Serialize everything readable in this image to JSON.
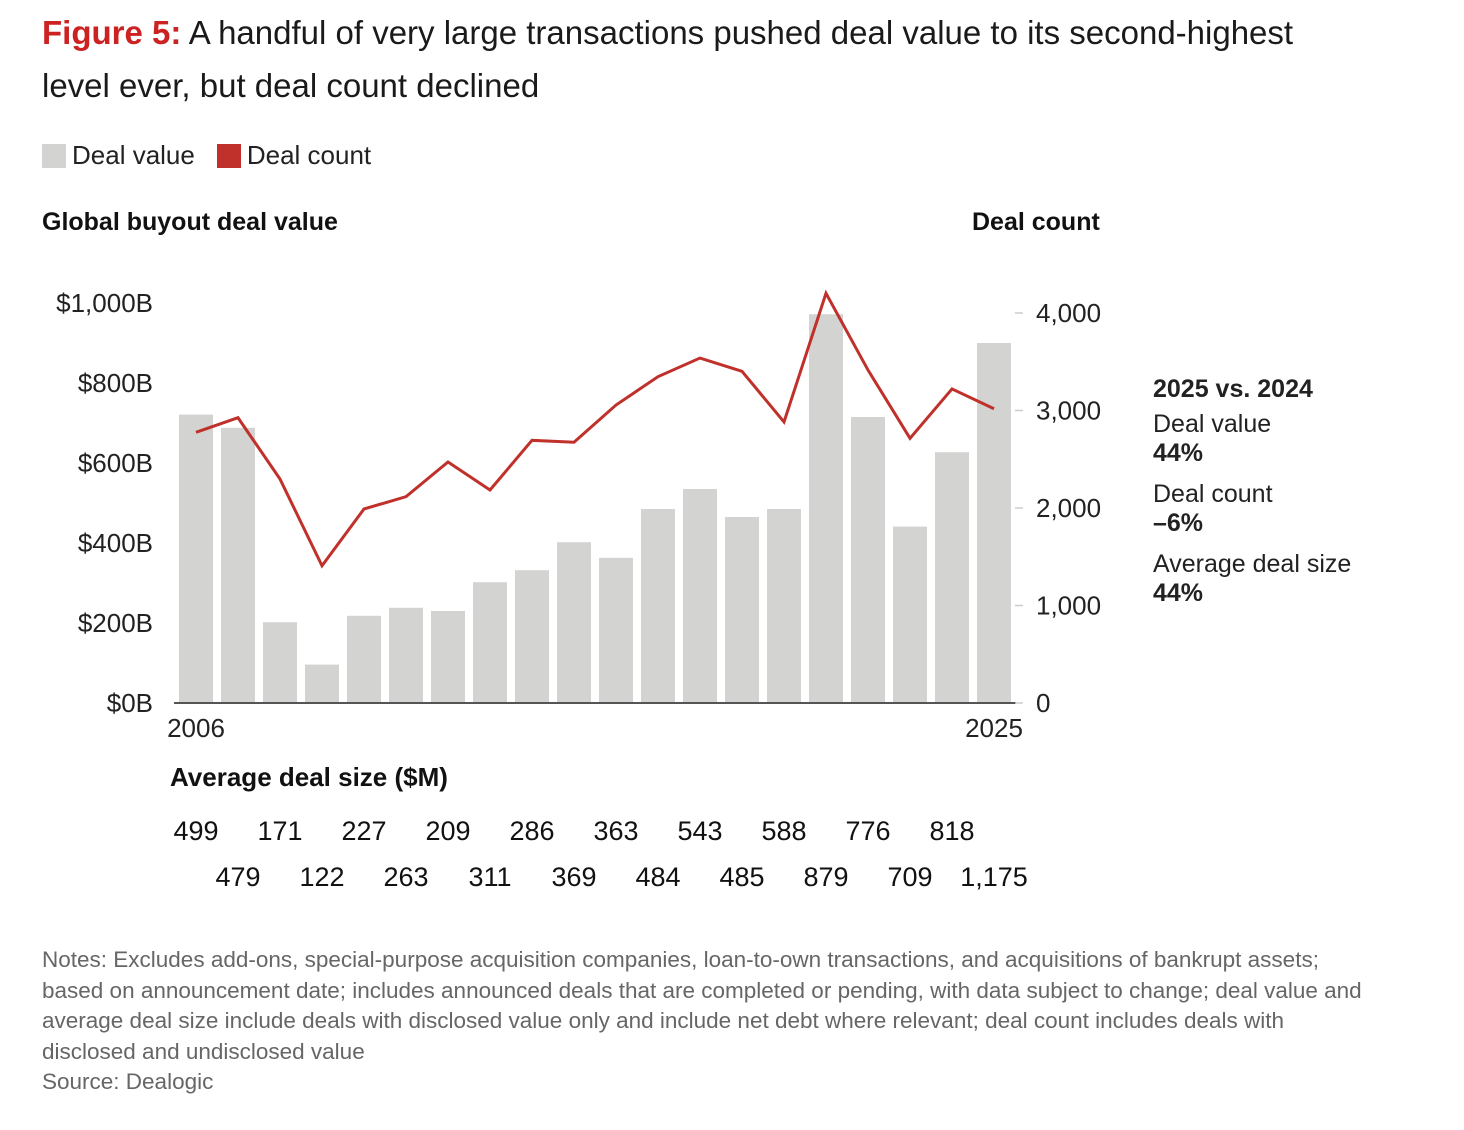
{
  "title": {
    "figure_label": "Figure 5:",
    "text": "A handful of very large transactions pushed deal value to its second-highest level ever, but deal count declined"
  },
  "legend": [
    {
      "label": "Deal value",
      "color": "#d3d3d1"
    },
    {
      "label": "Deal count",
      "color": "#c0312b"
    }
  ],
  "callout": {
    "heading": "2025 vs. 2024",
    "items": [
      {
        "label": "Deal value",
        "value": "44%"
      },
      {
        "label": "Deal count",
        "value": "–6%"
      },
      {
        "label": "Average deal size",
        "value": "44%"
      }
    ]
  },
  "avg_deal_size": {
    "title": "Average deal size ($M)",
    "values": [
      "499",
      "479",
      "171",
      "122",
      "227",
      "263",
      "209",
      "311",
      "286",
      "369",
      "363",
      "484",
      "543",
      "485",
      "588",
      "879",
      "776",
      "709",
      "818",
      "1,175"
    ]
  },
  "notes": "Notes: Excludes add-ons, special-purpose acquisition companies, loan-to-own transactions, and acquisitions of bankrupt assets; based on announcement date; includes announced deals that are completed or pending, with data subject to change; deal value and average deal size include deals with disclosed value only and include net debt where relevant; deal count includes deals with disclosed and undisclosed value",
  "source": "Source: Dealogic",
  "chart_data": {
    "type": "bar",
    "title": "A handful of very large transactions pushed deal value to its second-highest level ever, but deal count declined",
    "categories": [
      2006,
      2007,
      2008,
      2009,
      2010,
      2011,
      2012,
      2013,
      2014,
      2015,
      2016,
      2017,
      2018,
      2019,
      2020,
      2021,
      2022,
      2023,
      2024,
      2025
    ],
    "x_tick_labels": [
      "2006",
      "2025"
    ],
    "series": [
      {
        "name": "Deal value",
        "type": "bar",
        "axis": "left",
        "unit": "$B",
        "color": "#d3d3d1",
        "values": [
          721,
          688,
          202,
          96,
          218,
          238,
          230,
          302,
          332,
          402,
          363,
          485,
          535,
          465,
          485,
          972,
          715,
          441,
          627,
          900
        ]
      },
      {
        "name": "Deal count",
        "type": "line",
        "axis": "right",
        "color": "#c0312b",
        "values": [
          2776,
          2926,
          2297,
          1408,
          1990,
          2116,
          2472,
          2185,
          2694,
          2674,
          3056,
          3347,
          3538,
          3402,
          2882,
          4202,
          3415,
          2715,
          3221,
          3018
        ]
      }
    ],
    "left_axis": {
      "label": "Global buyout deal value",
      "range": [
        0,
        1000
      ],
      "ticks": [
        0,
        200,
        400,
        600,
        800,
        1000
      ],
      "tick_labels": [
        "$0B",
        "$200B",
        "$400B",
        "$600B",
        "$800B",
        "$1,000B"
      ]
    },
    "right_axis": {
      "label": "Deal count",
      "range": [
        0,
        4000
      ],
      "ticks": [
        0,
        1000,
        2000,
        3000,
        4000
      ],
      "tick_labels": [
        "0",
        "1,000",
        "2,000",
        "3,000",
        "4,000"
      ]
    },
    "grid": false,
    "legend_position": "top-left"
  }
}
